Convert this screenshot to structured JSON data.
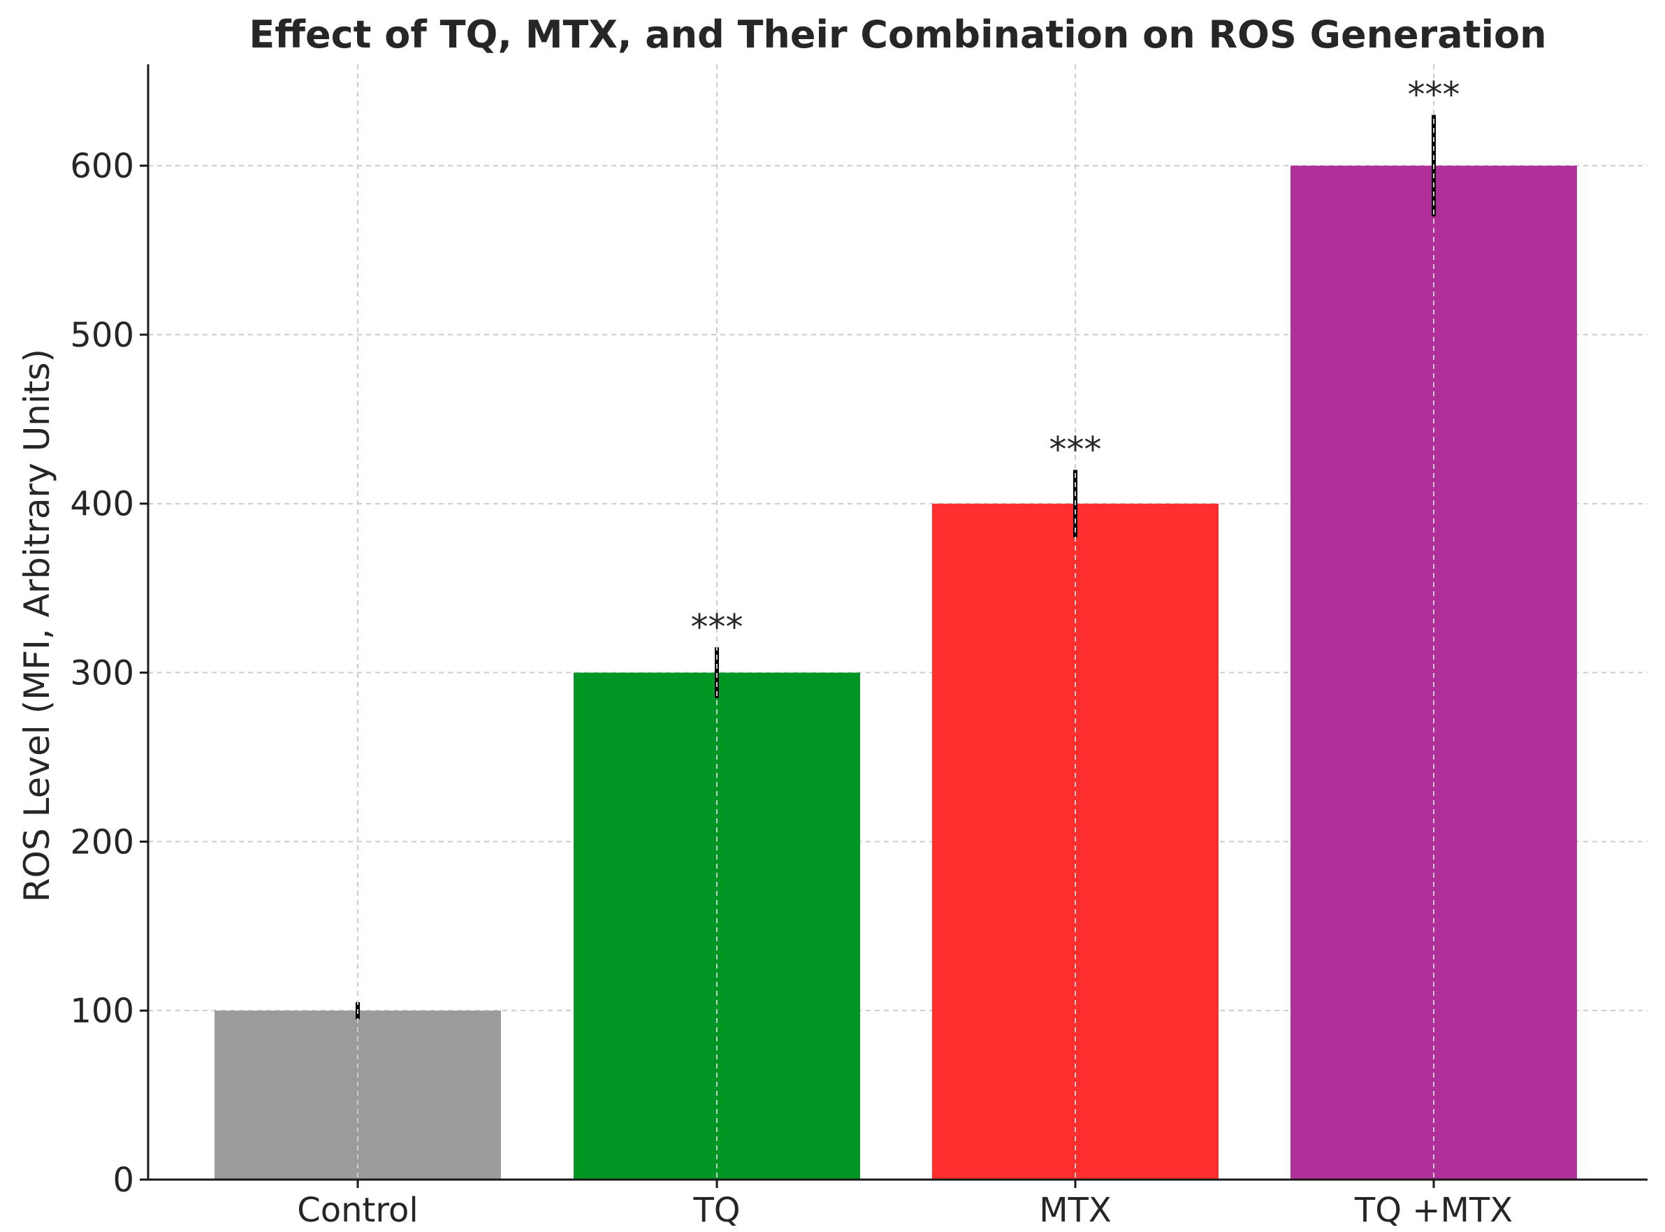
{
  "chart_data": {
    "type": "bar",
    "title": "Effect of TQ, MTX, and Their Combination on ROS Generation",
    "xlabel": "",
    "ylabel": "ROS Level (MFI, Arbitrary Units)",
    "ylim": [
      0,
      660
    ],
    "yticks": [
      0,
      100,
      200,
      300,
      400,
      500,
      600
    ],
    "grid": true,
    "categories": [
      "Control",
      "TQ",
      "MTX",
      "TQ +MTX"
    ],
    "values": [
      100,
      300,
      400,
      600
    ],
    "errors": [
      5,
      15,
      20,
      30
    ],
    "colors": [
      "#9b9b9b",
      "#009624",
      "#ff2f2f",
      "#b02f98"
    ],
    "significance": [
      "",
      "***",
      "***",
      "***"
    ]
  }
}
